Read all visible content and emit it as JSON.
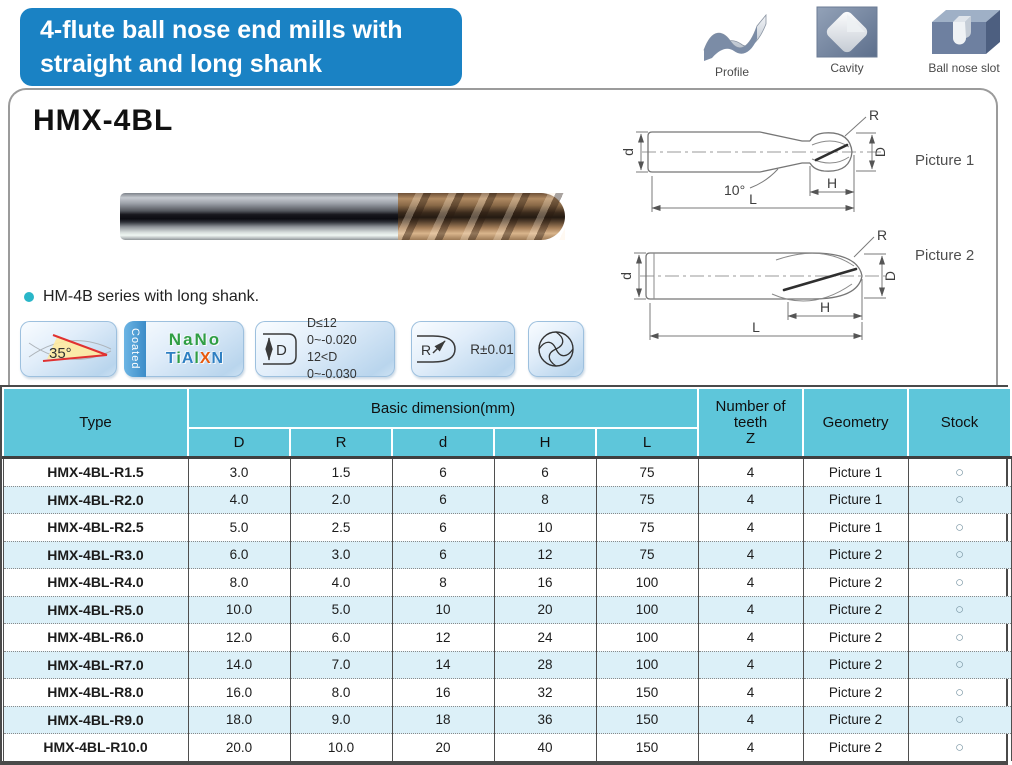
{
  "header": {
    "title_lines": [
      "4-flute ball nose end mills with",
      "straight and long shank"
    ],
    "banner_color": "#1a82c4",
    "applications": [
      {
        "label": "Profile"
      },
      {
        "label": "Cavity"
      },
      {
        "label": "Ball nose slot"
      }
    ]
  },
  "product": {
    "model": "HMX-4BL",
    "note": "HM-4B series with long shank.",
    "pictures": [
      {
        "label": "Picture 1"
      },
      {
        "label": "Picture 2"
      }
    ]
  },
  "drawing": {
    "labels": {
      "R": "R",
      "D": "D",
      "d": "d",
      "H": "H",
      "L": "L",
      "angle": "10°"
    }
  },
  "badges": {
    "helix_angle": "35°",
    "coating": {
      "strip_label": "Coated",
      "line1": "NaNo",
      "line2": "TiAlXN",
      "line2_letters": [
        {
          "ch": "T",
          "color": "#2e7fc2"
        },
        {
          "ch": "i",
          "color": "#2f9e44"
        },
        {
          "ch": "A",
          "color": "#2e7fc2"
        },
        {
          "ch": "l",
          "color": "#2f9e44"
        },
        {
          "ch": "X",
          "color": "#e8590c"
        },
        {
          "ch": "N",
          "color": "#2e7fc2"
        }
      ]
    },
    "d_tolerance": {
      "icon_letter": "D",
      "rows": [
        {
          "cond": "D≤12",
          "tol": "0~-0.020"
        },
        {
          "cond": "12<D",
          "tol": "0~-0.030"
        }
      ]
    },
    "r_tolerance": {
      "icon_letter": "R",
      "value": "R±0.01"
    }
  },
  "table": {
    "header": {
      "type": "Type",
      "basic_dimension": "Basic dimension(mm)",
      "dims": [
        "D",
        "R",
        "d",
        "H",
        "L"
      ],
      "teeth_lines": [
        "Number of",
        "teeth",
        "Z"
      ],
      "geometry": "Geometry",
      "stock": "Stock"
    },
    "header_bg": "#5ec6da",
    "alt_row_bg": "#dcf0f8",
    "rows": [
      {
        "type": "HMX-4BL-R1.5",
        "D": "3.0",
        "R": "1.5",
        "d": "6",
        "H": "6",
        "L": "75",
        "z": "4",
        "geometry": "Picture 1",
        "stock": "○"
      },
      {
        "type": "HMX-4BL-R2.0",
        "D": "4.0",
        "R": "2.0",
        "d": "6",
        "H": "8",
        "L": "75",
        "z": "4",
        "geometry": "Picture 1",
        "stock": "○"
      },
      {
        "type": "HMX-4BL-R2.5",
        "D": "5.0",
        "R": "2.5",
        "d": "6",
        "H": "10",
        "L": "75",
        "z": "4",
        "geometry": "Picture 1",
        "stock": "○"
      },
      {
        "type": "HMX-4BL-R3.0",
        "D": "6.0",
        "R": "3.0",
        "d": "6",
        "H": "12",
        "L": "75",
        "z": "4",
        "geometry": "Picture 2",
        "stock": "○"
      },
      {
        "type": "HMX-4BL-R4.0",
        "D": "8.0",
        "R": "4.0",
        "d": "8",
        "H": "16",
        "L": "100",
        "z": "4",
        "geometry": "Picture 2",
        "stock": "○"
      },
      {
        "type": "HMX-4BL-R5.0",
        "D": "10.0",
        "R": "5.0",
        "d": "10",
        "H": "20",
        "L": "100",
        "z": "4",
        "geometry": "Picture 2",
        "stock": "○"
      },
      {
        "type": "HMX-4BL-R6.0",
        "D": "12.0",
        "R": "6.0",
        "d": "12",
        "H": "24",
        "L": "100",
        "z": "4",
        "geometry": "Picture 2",
        "stock": "○"
      },
      {
        "type": "HMX-4BL-R7.0",
        "D": "14.0",
        "R": "7.0",
        "d": "14",
        "H": "28",
        "L": "100",
        "z": "4",
        "geometry": "Picture 2",
        "stock": "○"
      },
      {
        "type": "HMX-4BL-R8.0",
        "D": "16.0",
        "R": "8.0",
        "d": "16",
        "H": "32",
        "L": "150",
        "z": "4",
        "geometry": "Picture 2",
        "stock": "○"
      },
      {
        "type": "HMX-4BL-R9.0",
        "D": "18.0",
        "R": "9.0",
        "d": "18",
        "H": "36",
        "L": "150",
        "z": "4",
        "geometry": "Picture 2",
        "stock": "○"
      },
      {
        "type": "HMX-4BL-R10.0",
        "D": "20.0",
        "R": "10.0",
        "d": "20",
        "H": "40",
        "L": "150",
        "z": "4",
        "geometry": "Picture 2",
        "stock": "○"
      }
    ]
  },
  "colors": {
    "accent_blue": "#1a82c4",
    "table_header": "#5ec6da",
    "row_alt": "#dcf0f8",
    "bullet": "#29b6c8"
  }
}
